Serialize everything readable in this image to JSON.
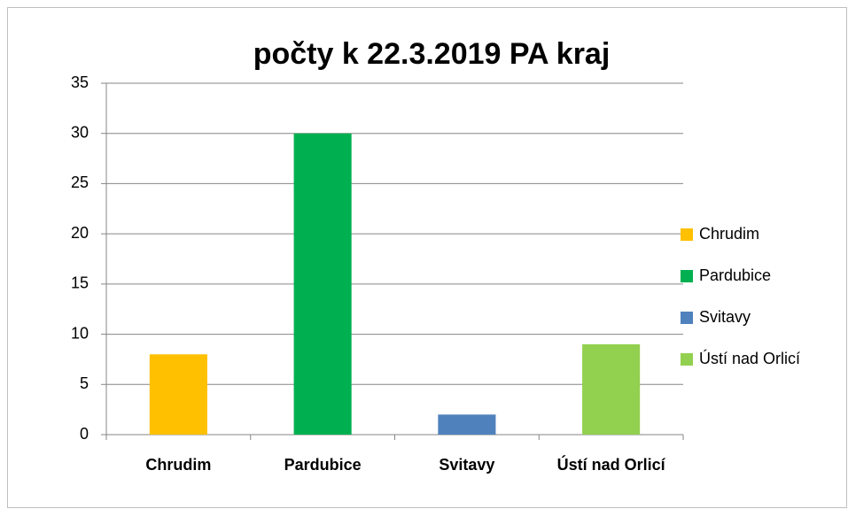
{
  "chart_data": {
    "type": "bar",
    "title": "počty k 22.3.2019 PA kraj",
    "categories": [
      "Chrudim",
      "Pardubice",
      "Svitavy",
      "Ústí nad Orlicí"
    ],
    "values": [
      8,
      30,
      2,
      9
    ],
    "colors": [
      "#FFC000",
      "#00B050",
      "#4F81BD",
      "#92D050"
    ],
    "ylim": [
      0,
      35
    ],
    "yticks": [
      0,
      5,
      10,
      15,
      20,
      25,
      30,
      35
    ],
    "grid": true,
    "legend": "right"
  }
}
